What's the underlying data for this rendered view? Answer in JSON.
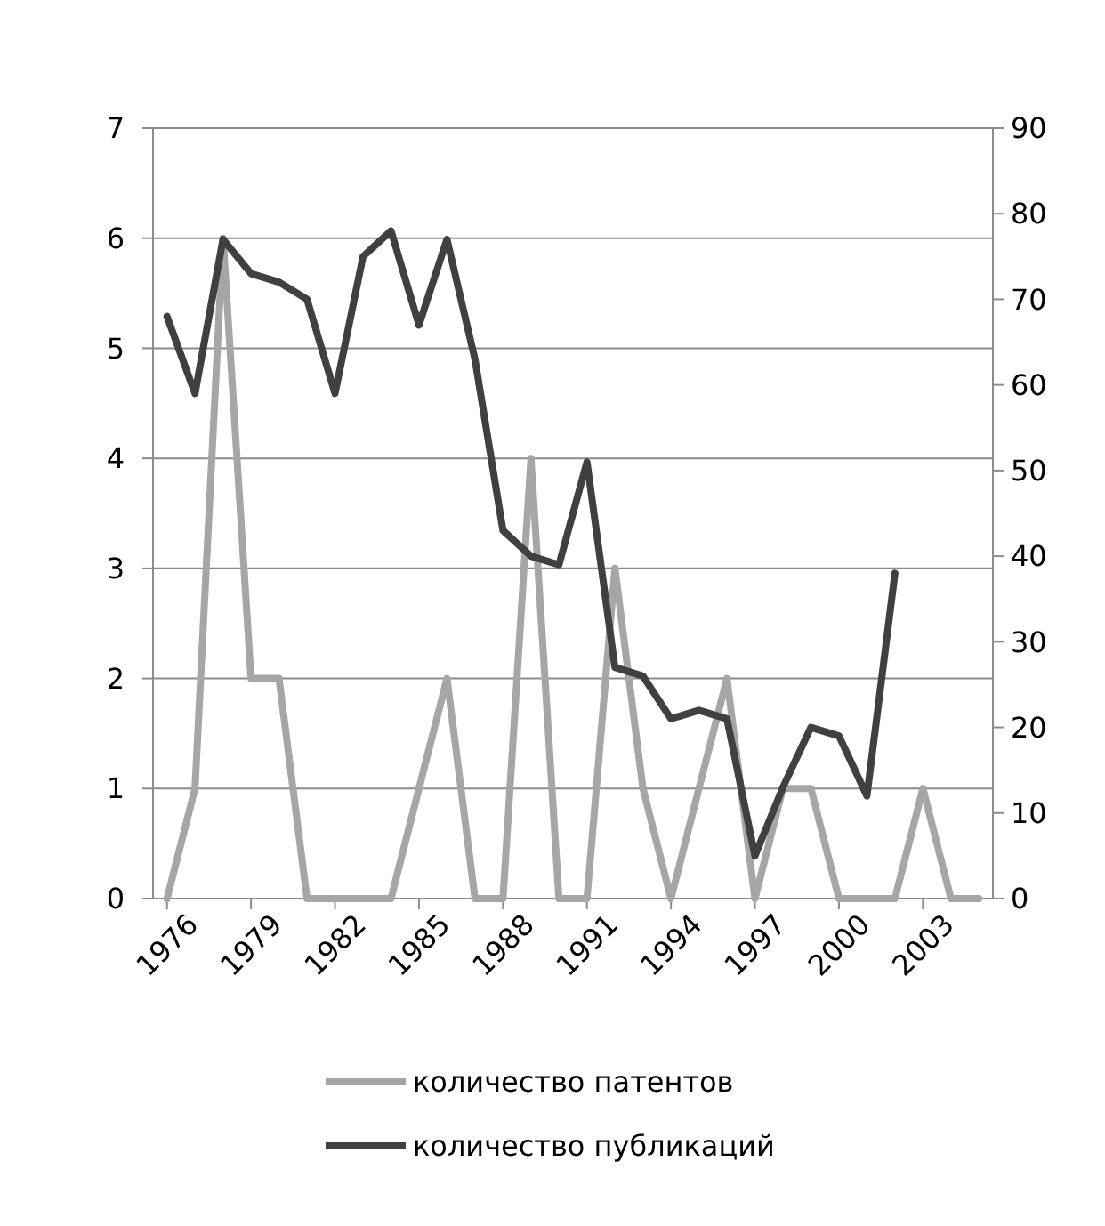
{
  "chart_data": {
    "type": "line",
    "x": [
      1976,
      1977,
      1978,
      1979,
      1980,
      1981,
      1982,
      1983,
      1984,
      1985,
      1986,
      1987,
      1988,
      1989,
      1990,
      1991,
      1992,
      1993,
      1994,
      1995,
      1996,
      1997,
      1998,
      1999,
      2000,
      2001,
      2002,
      2003,
      2004,
      2005
    ],
    "xlim": [
      1975.5,
      2005.5
    ],
    "xticks": [
      1976,
      1979,
      1982,
      1985,
      1988,
      1991,
      1994,
      1997,
      2000,
      2003
    ],
    "series": [
      {
        "name": "количество патентов",
        "color": "#a6a6a6",
        "values": [
          0,
          1,
          6,
          2,
          2,
          0,
          0,
          0,
          0,
          1,
          2,
          0,
          0,
          4,
          0,
          0,
          3,
          1,
          0,
          1,
          2,
          0,
          1,
          1,
          0,
          0,
          0,
          1,
          0,
          0
        ]
      },
      {
        "name": "количество публикаций",
        "color": "#404040",
        "axis": "y2",
        "values": [
          68,
          59,
          77,
          73,
          72,
          70,
          59,
          75,
          78,
          67,
          77,
          63,
          43,
          40,
          39,
          51,
          27,
          26,
          21,
          22,
          21,
          5,
          13,
          20,
          19,
          12,
          38,
          null,
          null,
          null
        ]
      }
    ],
    "ylim": [
      0,
      7
    ],
    "yticks": [
      0,
      1,
      2,
      3,
      4,
      5,
      6,
      7
    ],
    "y2lim": [
      0,
      90
    ],
    "y2ticks": [
      0,
      10,
      20,
      30,
      40,
      50,
      60,
      70,
      80,
      90
    ],
    "grid": "y",
    "legend": "bottom",
    "marker": "none",
    "line_style": "solid"
  }
}
